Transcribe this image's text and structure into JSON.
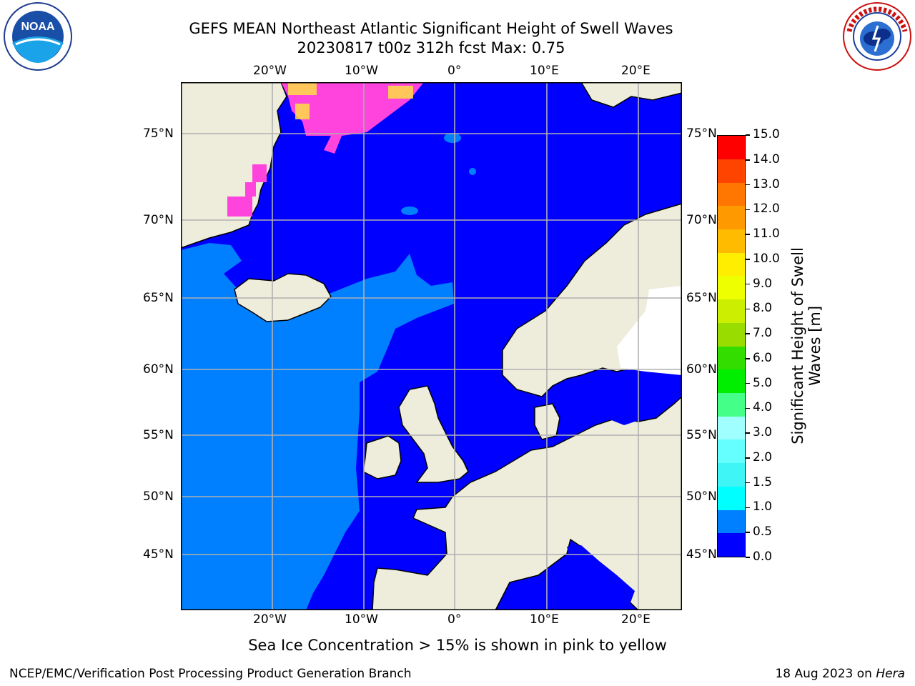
{
  "title": {
    "line1": "GEFS MEAN Northeast Atlantic Significant Height of Swell Waves",
    "line2": "20230817 t00z 312h fcst   Max: 0.75"
  },
  "map": {
    "lon_labels": [
      "20°W",
      "10°W",
      "0°",
      "10°E",
      "20°E"
    ],
    "lat_labels": [
      "75°N",
      "70°N",
      "65°N",
      "60°N",
      "55°N",
      "50°N",
      "45°N"
    ],
    "colors": {
      "land": "#eeeddc",
      "sea_low": "#0000ff",
      "sea_mid": "#0080ff",
      "ice_pink": "#ff44dd",
      "ice_yellow": "#ffff33",
      "grid": "#b0b0b0",
      "coast": "#000000"
    }
  },
  "colorbar": {
    "label": "Significant Height of Swell Waves [m]",
    "label_line1": "Significant Height of Swell",
    "label_line2": "Waves [m]",
    "ticks": [
      "15.0",
      "14.0",
      "13.0",
      "12.0",
      "11.0",
      "10.0",
      "9.0",
      "8.0",
      "7.0",
      "6.0",
      "5.0",
      "4.0",
      "3.0",
      "2.0",
      "1.5",
      "1.0",
      "0.5",
      "0.0"
    ],
    "colors_bottom_to_top": [
      "#0000ff",
      "#0080ff",
      "#00ffff",
      "#3ff5f5",
      "#66ffff",
      "#a0ffff",
      "#44ff88",
      "#00ee00",
      "#33dd00",
      "#99dd00",
      "#ccee00",
      "#eeff00",
      "#ffee00",
      "#ffbb00",
      "#ff9900",
      "#ff7700",
      "#ff4400",
      "#ff0000"
    ]
  },
  "notes": {
    "sea_ice": "Sea Ice Concentration > 15% is shown in pink to yellow"
  },
  "footer": {
    "left": "NCEP/EMC/Verification Post Processing Product Generation Branch",
    "right_prefix": "18 Aug 2023 on ",
    "right_host": "Hera"
  },
  "logos": {
    "noaa_icon": "noaa-logo",
    "noaa_text": "NOAA",
    "nws_icon": "nws-logo",
    "nws_text": "NATIONAL WEATHER SERVICE"
  }
}
